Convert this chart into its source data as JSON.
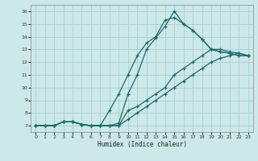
{
  "xlabel": "Humidex (Indice chaleur)",
  "background_color": "#cce8e8",
  "line_color": "#1a6b6b",
  "grid_color": "#aacece",
  "xlim": [
    -0.5,
    23.5
  ],
  "ylim": [
    6.5,
    16.5
  ],
  "xticks": [
    0,
    1,
    2,
    3,
    4,
    5,
    6,
    7,
    8,
    9,
    10,
    11,
    12,
    13,
    14,
    15,
    16,
    17,
    18,
    19,
    20,
    21,
    22,
    23
  ],
  "yticks": [
    7,
    8,
    9,
    10,
    11,
    12,
    13,
    14,
    15,
    16
  ],
  "lines": [
    {
      "x": [
        0,
        1,
        2,
        3,
        4,
        5,
        6,
        7,
        8,
        9,
        10,
        11,
        12,
        13,
        14,
        15,
        16,
        17,
        18,
        19,
        20,
        21,
        22,
        23
      ],
      "y": [
        7,
        7,
        7,
        7.3,
        7.3,
        7.1,
        7.0,
        7.0,
        7.0,
        7.0,
        7.5,
        8.0,
        8.5,
        9.0,
        9.5,
        10.0,
        10.5,
        11.0,
        11.5,
        12.0,
        12.3,
        12.5,
        12.7,
        12.5
      ]
    },
    {
      "x": [
        0,
        1,
        2,
        3,
        4,
        5,
        6,
        7,
        8,
        9,
        10,
        11,
        12,
        13,
        14,
        15,
        16,
        17,
        18,
        19,
        20,
        21,
        22,
        23
      ],
      "y": [
        7,
        7,
        7,
        7.3,
        7.3,
        7.1,
        7.0,
        7.0,
        7.0,
        7.0,
        8.2,
        8.5,
        9.0,
        9.5,
        10.0,
        11.0,
        11.5,
        12.0,
        12.5,
        13.0,
        13.0,
        12.8,
        12.7,
        12.5
      ]
    },
    {
      "x": [
        0,
        1,
        2,
        3,
        4,
        5,
        6,
        7,
        8,
        9,
        10,
        11,
        12,
        13,
        14,
        15,
        16,
        17,
        18,
        19,
        20,
        21,
        22,
        23
      ],
      "y": [
        7,
        7,
        7,
        7.3,
        7.3,
        7.1,
        7.0,
        7.0,
        8.2,
        9.5,
        11.0,
        12.5,
        13.5,
        14.0,
        15.3,
        15.5,
        15.0,
        14.5,
        13.8,
        13.0,
        12.8,
        12.7,
        12.5,
        12.5
      ]
    },
    {
      "x": [
        0,
        1,
        2,
        3,
        4,
        5,
        6,
        7,
        8,
        9,
        10,
        11,
        12,
        13,
        14,
        15,
        16,
        17,
        18,
        19,
        20,
        21,
        22,
        23
      ],
      "y": [
        7,
        7,
        7,
        7.3,
        7.3,
        7.1,
        7.0,
        7.0,
        7.0,
        7.2,
        9.5,
        11.0,
        13.0,
        13.9,
        14.8,
        16.0,
        15.0,
        14.5,
        13.8,
        13.0,
        12.8,
        12.7,
        12.5,
        12.5
      ]
    }
  ]
}
